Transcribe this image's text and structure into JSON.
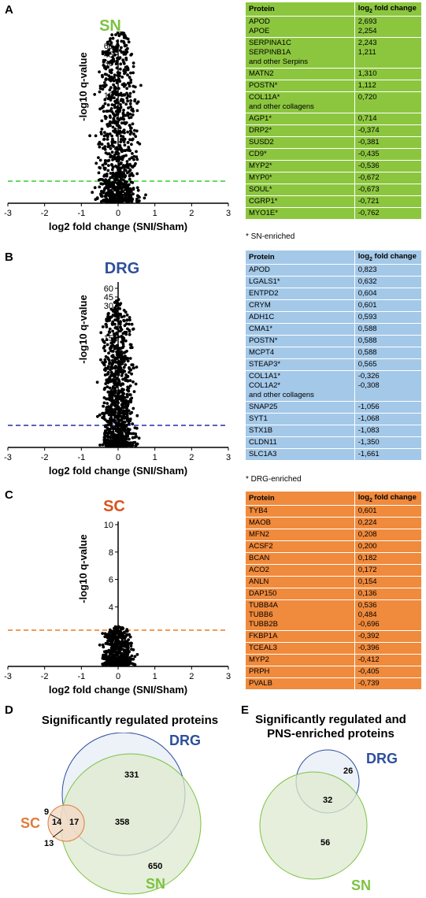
{
  "panels": [
    {
      "letter": "A",
      "title": "SN",
      "color": "#7dc242",
      "threshold_line_color": "#2fd02f",
      "xlabel": "log2 fold change (SNI/Sham)",
      "ylabel": "-log10 q-value",
      "yticks": [
        "15",
        "30",
        "45",
        "60"
      ],
      "xticks": [
        "-3",
        "-2",
        "-1",
        "0",
        "1",
        "2",
        "3"
      ],
      "table_color": "#8cc63f",
      "table_header": [
        "Protein",
        "log2 fold change"
      ],
      "rows": [
        {
          "p": "APOD\nAPOE",
          "v": "2,693\n2,254"
        },
        {
          "p": "SERPINA1C\nSERPINB1A\nand other Serpins",
          "v": "2,243\n1,211"
        },
        {
          "p": "MATN2",
          "v": "1,310"
        },
        {
          "p": "POSTN*",
          "v": "1,112"
        },
        {
          "p": "COL11A*\nand other collagens",
          "v": "0,720"
        },
        {
          "p": "AGP1*",
          "v": "0,714"
        },
        {
          "p": "DRP2*",
          "v": "-0,374"
        },
        {
          "p": "SUSD2",
          "v": "-0,381"
        },
        {
          "p": "CD9*",
          "v": "-0,435"
        },
        {
          "p": "MYP2*",
          "v": "-0,536"
        },
        {
          "p": "MYP0*",
          "v": "-0,672"
        },
        {
          "p": "SOUL*",
          "v": "-0,673"
        },
        {
          "p": "CGRP1*",
          "v": "-0,721"
        },
        {
          "p": "MYO1E*",
          "v": "-0,762"
        }
      ],
      "note": "* SN-enriched"
    },
    {
      "letter": "B",
      "title": "DRG",
      "color": "#2e4f9c",
      "threshold_line_color": "#1f2fb0",
      "xlabel": "log2 fold change (SNI/Sham)",
      "ylabel": "-log10 q-value",
      "yticks": [
        "15",
        "30",
        "45",
        "60"
      ],
      "xticks": [
        "-3",
        "-2",
        "-1",
        "0",
        "1",
        "2",
        "3"
      ],
      "table_color": "#a4c8e8",
      "table_header": [
        "Protein",
        "log2 fold change"
      ],
      "rows": [
        {
          "p": "APOD",
          "v": "0,823"
        },
        {
          "p": "LGALS1*",
          "v": "0,632"
        },
        {
          "p": "ENTPD2",
          "v": "0,604"
        },
        {
          "p": "CRYM",
          "v": "0,601"
        },
        {
          "p": "ADH1C",
          "v": "0,593"
        },
        {
          "p": "CMA1*",
          "v": "0,588"
        },
        {
          "p": "POSTN*",
          "v": "0,588"
        },
        {
          "p": "MCPT4",
          "v": "0,588"
        },
        {
          "p": "STEAP3*",
          "v": "0,565"
        },
        {
          "p": "COL1A1*\nCOL1A2*\nand other collagens",
          "v": "-0,326\n-0,308"
        },
        {
          "p": "SNAP25",
          "v": "-1,056"
        },
        {
          "p": "SYT1",
          "v": "-1,068"
        },
        {
          "p": "STX1B",
          "v": "-1,083"
        },
        {
          "p": "CLDN11",
          "v": "-1,350"
        },
        {
          "p": "SLC1A3",
          "v": "-1,661"
        }
      ],
      "note": "* DRG-enriched"
    },
    {
      "letter": "C",
      "title": "SC",
      "color": "#d9531e",
      "threshold_line_color": "#f07820",
      "xlabel": "log2 fold change (SNI/Sham)",
      "ylabel": "-log10 q-value",
      "yticks": [
        "10",
        "8",
        "6",
        "4",
        "2"
      ],
      "xticks": [
        "-3",
        "-2",
        "-1",
        "0",
        "1",
        "2",
        "3"
      ],
      "table_color": "#f08a3c",
      "table_header": [
        "Protein",
        "log2 fold change"
      ],
      "rows": [
        {
          "p": "TYB4",
          "v": "0,601"
        },
        {
          "p": "MAOB",
          "v": "0,224"
        },
        {
          "p": "MFN2",
          "v": "0,208"
        },
        {
          "p": "ACSF2",
          "v": "0,200"
        },
        {
          "p": "BCAN",
          "v": "0,182"
        },
        {
          "p": "ACO2",
          "v": "0,172"
        },
        {
          "p": "ANLN",
          "v": "0,154"
        },
        {
          "p": "DAP150",
          "v": "0,136"
        },
        {
          "p": "TUBB4A\nTUBB6\nTUBB2B",
          "v": "0,536\n0,484\n-0,696"
        },
        {
          "p": "FKBP1A",
          "v": "-0,392"
        },
        {
          "p": "TCEAL3",
          "v": "-0,396"
        },
        {
          "p": "MYP2",
          "v": "-0,412"
        },
        {
          "p": "PRPH",
          "v": "-0,405"
        },
        {
          "p": "PVALB",
          "v": "-0,739"
        }
      ],
      "note": ""
    }
  ],
  "venn_d": {
    "letter": "D",
    "title": "Significantly regulated proteins",
    "labels": {
      "drg": "DRG",
      "sn": "SN",
      "sc": "SC"
    },
    "numbers": {
      "drg_only": "331",
      "drg_sn": "358",
      "sn_only": "650",
      "sc_only": "14",
      "sc_all": "17",
      "sc_drg": "9",
      "sc_sn": "13"
    }
  },
  "venn_e": {
    "letter": "E",
    "title": "Significantly regulated and\nPNS-enriched proteins",
    "labels": {
      "drg": "DRG",
      "sn": "SN"
    },
    "numbers": {
      "drg_only": "26",
      "overlap": "32",
      "sn_only": "56"
    }
  },
  "colors": {
    "drg": "#2e4f9c",
    "sn": "#7dc242",
    "sc": "#e07b39"
  }
}
